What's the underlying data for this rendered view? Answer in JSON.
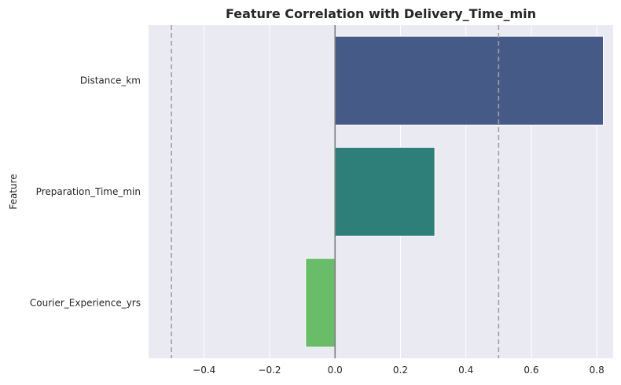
{
  "chart_data": {
    "type": "bar",
    "orientation": "horizontal",
    "title": "Feature Correlation with Delivery_Time_min",
    "xlabel": "",
    "ylabel": "Feature",
    "categories": [
      "Distance_km",
      "Preparation_Time_min",
      "Courier_Experience_yrs"
    ],
    "values": [
      0.82,
      0.305,
      -0.09
    ],
    "bar_colors": [
      "#455a87",
      "#2e7f79",
      "#69bd69"
    ],
    "xlim": [
      -0.57,
      0.85
    ],
    "xticks": [
      -0.4,
      -0.2,
      0.0,
      0.2,
      0.4,
      0.6,
      0.8
    ],
    "xtick_labels": [
      "−0.4",
      "−0.2",
      "0.0",
      "0.2",
      "0.4",
      "0.6",
      "0.8"
    ],
    "reference_lines": [
      {
        "x": 0.0,
        "style": "solid",
        "color": "#808080"
      },
      {
        "x": -0.5,
        "style": "dashed",
        "color": "#a0a0a0"
      },
      {
        "x": 0.5,
        "style": "dashed",
        "color": "#a0a0a0"
      }
    ],
    "grid": "vertical",
    "background_color": "#eaeaf2"
  }
}
